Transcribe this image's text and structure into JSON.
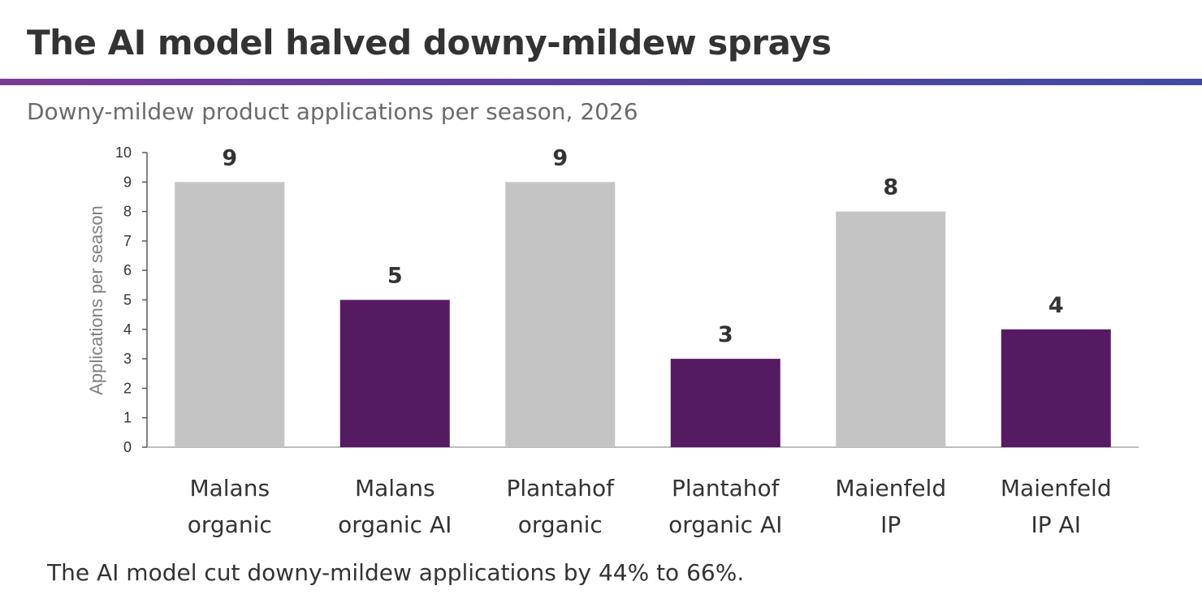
{
  "header": {
    "title": "The AI model halved downy-mildew sprays",
    "subtitle": "Downy-mildew product applications per season, 2026"
  },
  "footnote": "The AI model cut downy-mildew applications by 44% to 66%.",
  "chart_data": {
    "type": "bar",
    "title": "The AI model halved downy-mildew sprays",
    "subtitle": "Downy-mildew product applications per season, 2026",
    "xlabel": "",
    "ylabel": "Applications per season",
    "ylim": [
      0,
      10
    ],
    "yticks": [
      0,
      1,
      2,
      3,
      4,
      5,
      6,
      7,
      8,
      9,
      10
    ],
    "grid": false,
    "categories": [
      [
        "Malans",
        "organic"
      ],
      [
        "Malans",
        "organic AI"
      ],
      [
        "Plantahof",
        "organic"
      ],
      [
        "Plantahof",
        "organic AI"
      ],
      [
        "Maienfeld",
        "IP"
      ],
      [
        "Maienfeld",
        "IP AI"
      ]
    ],
    "values": [
      9,
      5,
      9,
      3,
      8,
      4
    ],
    "data_labels": [
      "9",
      "5",
      "9",
      "3",
      "8",
      "4"
    ],
    "bar_colors": [
      "#c4c4c4",
      "#561a63",
      "#c4c4c4",
      "#561a63",
      "#c4c4c4",
      "#561a63"
    ]
  }
}
